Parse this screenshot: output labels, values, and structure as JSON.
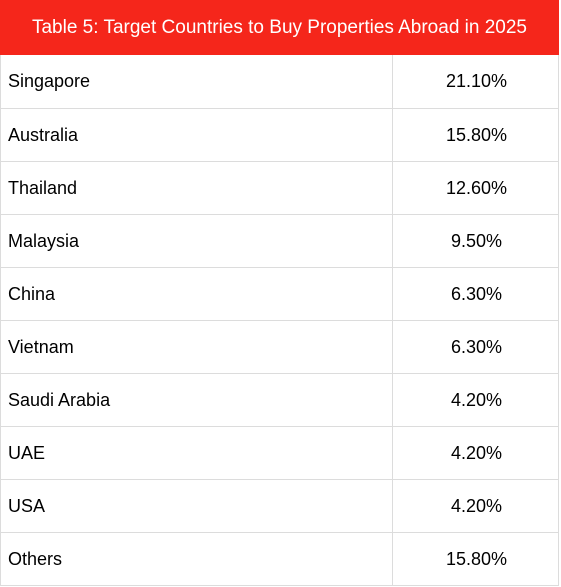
{
  "chart_data": {
    "type": "table",
    "title": "Table 5: Target Countries to Buy Properties Abroad in 2025",
    "categories": [
      "Singapore",
      "Australia",
      "Thailand",
      "Malaysia",
      "China",
      "Vietnam",
      "Saudi Arabia",
      "UAE",
      "USA",
      "Others"
    ],
    "values": [
      21.1,
      15.8,
      12.6,
      9.5,
      6.3,
      6.3,
      4.2,
      4.2,
      4.2,
      15.8
    ],
    "value_labels": [
      "21.10%",
      "15.80%",
      "12.60%",
      "9.50%",
      "6.30%",
      "6.30%",
      "4.20%",
      "4.20%",
      "4.20%",
      "15.80%"
    ],
    "header_color": "#f5261b"
  }
}
